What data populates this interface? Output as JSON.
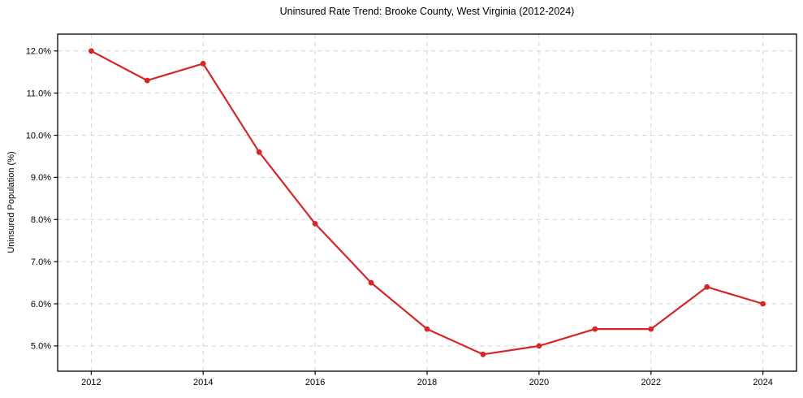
{
  "chart_data": {
    "type": "line",
    "title": "Uninsured Rate Trend: Brooke County, West Virginia (2012-2024)",
    "xlabel": "",
    "ylabel": "Uninsured Population (%)",
    "x": [
      2012,
      2013,
      2014,
      2015,
      2016,
      2017,
      2018,
      2019,
      2020,
      2021,
      2022,
      2023,
      2024
    ],
    "values": [
      12.0,
      11.3,
      11.7,
      9.6,
      7.9,
      6.5,
      5.4,
      4.8,
      5.0,
      5.4,
      5.4,
      6.4,
      6.0
    ],
    "x_ticks": [
      2012,
      2014,
      2016,
      2018,
      2020,
      2022,
      2024
    ],
    "x_tick_labels": [
      "2012",
      "2014",
      "2016",
      "2018",
      "2020",
      "2022",
      "2024"
    ],
    "y_ticks": [
      5.0,
      6.0,
      7.0,
      8.0,
      9.0,
      10.0,
      11.0,
      12.0
    ],
    "y_tick_labels": [
      "5.0%",
      "6.0%",
      "7.0%",
      "8.0%",
      "9.0%",
      "10.0%",
      "11.0%",
      "12.0%"
    ],
    "xlim": [
      2011.4,
      2024.6
    ],
    "ylim": [
      4.4,
      12.4
    ],
    "grid": true,
    "legend": false,
    "line_color": "#d62728",
    "marker_color": "#d62728",
    "grid_color": "#d3d3d3",
    "spine_color": "#000000",
    "background": "#ffffff"
  }
}
